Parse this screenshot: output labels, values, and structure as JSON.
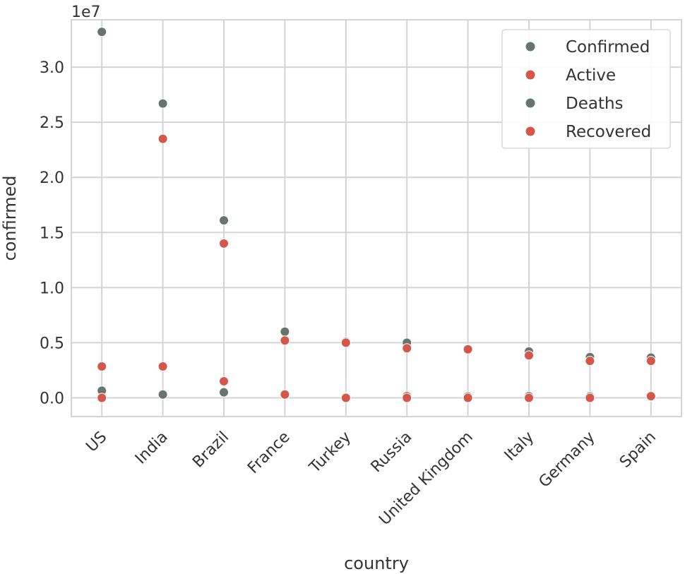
{
  "colors": {
    "confirmed": "#66766e",
    "active": "#d4574a",
    "deaths": "#66766e",
    "recovered": "#d4574a"
  },
  "chart_data": {
    "type": "scatter",
    "xlabel": "country",
    "ylabel": "confirmed",
    "y_offset_label": "1e7",
    "y_scale": 10000000,
    "ylim": [
      -1700000,
      34300000
    ],
    "y_ticks": [
      0.0,
      0.5,
      1.0,
      1.5,
      2.0,
      2.5,
      3.0
    ],
    "y_tick_labels": [
      "0.0",
      "0.5",
      "1.0",
      "1.5",
      "2.0",
      "2.5",
      "3.0"
    ],
    "grid": true,
    "legend_position": "top-right",
    "categories": [
      "US",
      "India",
      "Brazil",
      "France",
      "Turkey",
      "Russia",
      "United Kingdom",
      "Italy",
      "Germany",
      "Spain"
    ],
    "series": [
      {
        "name": "Confirmed",
        "color_key": "confirmed",
        "values": [
          33200000,
          26700000,
          16100000,
          6000000,
          5100000,
          5000000,
          4450000,
          4200000,
          3700000,
          3650000
        ]
      },
      {
        "name": "Active",
        "color_key": "active",
        "values": [
          2850000,
          23500000,
          14000000,
          5200000,
          5000000,
          4500000,
          4400000,
          3850000,
          3350000,
          3350000
        ]
      },
      {
        "name": "Deaths",
        "color_key": "deaths",
        "values": [
          650000,
          300000,
          500000,
          300000,
          50000,
          150000,
          120000,
          150000,
          120000,
          100000
        ]
      },
      {
        "name": "Recovered",
        "color_key": "recovered",
        "values": [
          0,
          2850000,
          1500000,
          300000,
          0,
          0,
          0,
          0,
          0,
          150000
        ]
      }
    ]
  }
}
